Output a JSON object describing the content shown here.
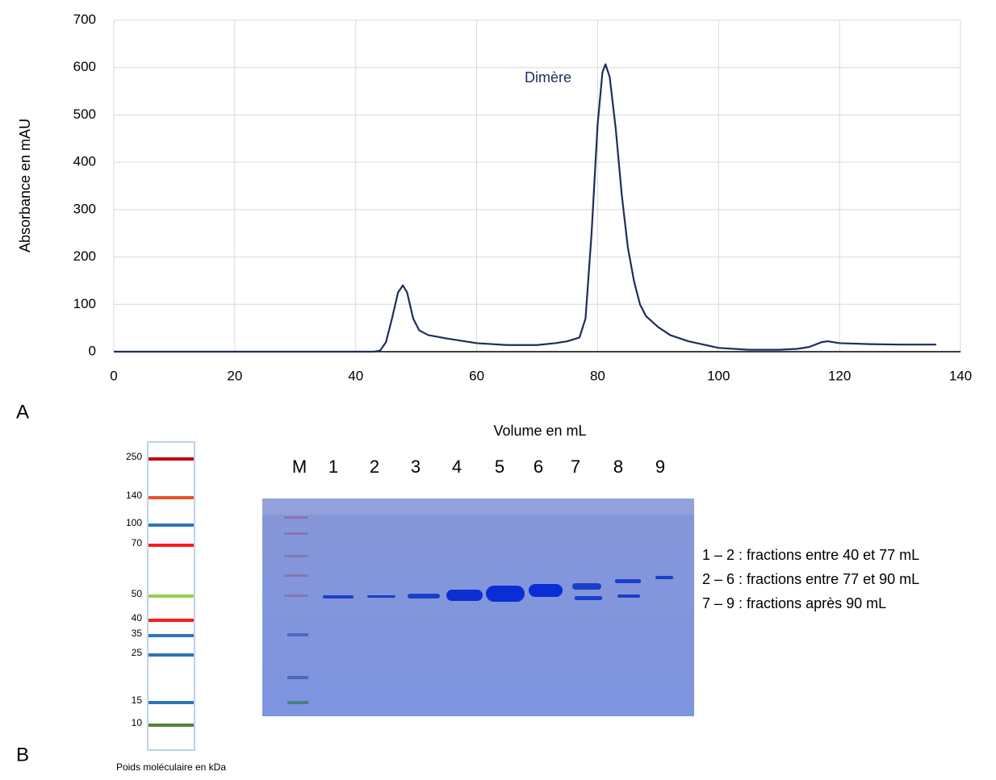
{
  "chart_data": {
    "type": "line",
    "y_label": "Absorbance en mAU",
    "x_label": "Volume en mL",
    "annotation": "Dimère",
    "x": [
      0,
      10,
      20,
      30,
      40,
      43,
      44,
      45,
      46,
      47,
      47.8,
      48.5,
      49.5,
      50.5,
      52,
      55,
      60,
      65,
      70,
      73,
      75,
      77,
      78,
      79,
      80,
      80.8,
      81.3,
      82,
      83,
      84,
      85,
      86,
      87,
      88,
      90,
      92,
      95,
      100,
      105,
      110,
      113,
      115,
      117,
      118,
      120,
      125,
      130,
      136
    ],
    "values": [
      0,
      0,
      0,
      0,
      0,
      0,
      2,
      20,
      70,
      125,
      140,
      125,
      70,
      45,
      35,
      28,
      18,
      14,
      14,
      18,
      22,
      30,
      70,
      250,
      480,
      590,
      607,
      580,
      470,
      330,
      220,
      150,
      100,
      75,
      52,
      35,
      22,
      8,
      4,
      4,
      6,
      10,
      20,
      22,
      18,
      16,
      15,
      15
    ],
    "color": "#1f2d5c",
    "xlim": [
      0,
      140
    ],
    "xticks": [
      0,
      20,
      40,
      60,
      80,
      100,
      120,
      140
    ],
    "ylim": [
      0,
      700
    ],
    "yticks": [
      0,
      100,
      200,
      300,
      400,
      500,
      600,
      700
    ],
    "grid": true
  },
  "panels": [
    "A",
    "B"
  ],
  "gel": {
    "lanes": [
      "M",
      "1",
      "2",
      "3",
      "4",
      "5",
      "6",
      "7",
      "8",
      "9"
    ],
    "legend": [
      "1 – 2 : fractions entre 40 et 77 mL",
      "2 – 6 : fractions entre 77 et 90 mL",
      "7 – 9 : fractions après 90 mL"
    ]
  },
  "ladder": {
    "title": "Poids moléculaire en kDa",
    "bands": [
      {
        "label": 250,
        "color": "#c00000"
      },
      {
        "label": 140,
        "color": "#f0502a"
      },
      {
        "label": 100,
        "color": "#2e75b6"
      },
      {
        "label": 70,
        "color": "#ff1a1a"
      },
      {
        "label": 50,
        "color": "#92d050"
      },
      {
        "label": 40,
        "color": "#ff1a1a"
      },
      {
        "label": 35,
        "color": "#2e75b6"
      },
      {
        "label": 25,
        "color": "#2e75b6"
      },
      {
        "label": 15,
        "color": "#2e75b6"
      },
      {
        "label": 10,
        "color": "#548235"
      }
    ]
  }
}
